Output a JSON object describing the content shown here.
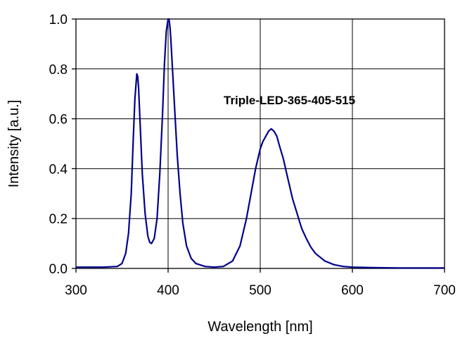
{
  "chart_data": {
    "type": "line",
    "xlabel": "Wavelength [nm]",
    "ylabel": "Intensity [a.u.]",
    "xlim": [
      300,
      700
    ],
    "ylim": [
      0,
      1.0
    ],
    "x_ticks": [
      "300",
      "400",
      "500",
      "600",
      "700"
    ],
    "y_ticks": [
      "0.0",
      "0.2",
      "0.4",
      "0.6",
      "0.8",
      "1.0"
    ],
    "grid": true,
    "annotation": "Triple-LED-365-405-515",
    "series": [
      {
        "color": "#00008b",
        "x": [
          300,
          330,
          345,
          350,
          354,
          357,
          360,
          362,
          364,
          366,
          367,
          368,
          370,
          372,
          375,
          378,
          380,
          382,
          385,
          388,
          391,
          394,
          396,
          398,
          400,
          401,
          402,
          403,
          405,
          408,
          410,
          413,
          416,
          420,
          425,
          430,
          440,
          450,
          460,
          470,
          478,
          485,
          490,
          495,
          500,
          503,
          506,
          509,
          512,
          515,
          518,
          521,
          525,
          530,
          535,
          540,
          545,
          550,
          555,
          560,
          570,
          580,
          590,
          600,
          620,
          650,
          700
        ],
        "y": [
          0.005,
          0.005,
          0.008,
          0.02,
          0.06,
          0.14,
          0.3,
          0.5,
          0.68,
          0.78,
          0.77,
          0.72,
          0.55,
          0.38,
          0.22,
          0.13,
          0.105,
          0.1,
          0.12,
          0.2,
          0.38,
          0.62,
          0.82,
          0.95,
          1.0,
          1.0,
          0.97,
          0.92,
          0.78,
          0.58,
          0.45,
          0.3,
          0.18,
          0.09,
          0.04,
          0.02,
          0.008,
          0.005,
          0.008,
          0.03,
          0.09,
          0.2,
          0.3,
          0.4,
          0.48,
          0.51,
          0.53,
          0.55,
          0.56,
          0.55,
          0.53,
          0.49,
          0.44,
          0.36,
          0.28,
          0.22,
          0.16,
          0.12,
          0.085,
          0.06,
          0.03,
          0.015,
          0.008,
          0.005,
          0.003,
          0.002,
          0.002
        ]
      }
    ]
  }
}
